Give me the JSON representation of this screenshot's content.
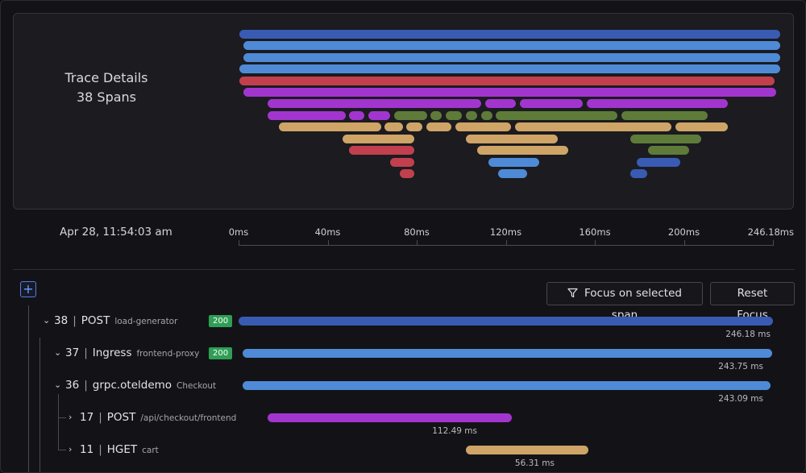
{
  "colors": {
    "dark_blue": "#3a5bb3",
    "light_blue": "#4f8ad6",
    "red": "#c2404e",
    "purple": "#a335cf",
    "olive": "#5e7b39",
    "tan": "#cfa467",
    "badge_green": "#2f9e55"
  },
  "minimap": {
    "title": "Trace Details",
    "subtitle": "38 Spans"
  },
  "timeline": {
    "date": "Apr 28, 11:54:03 am",
    "ticks": [
      "0ms",
      "40ms",
      "80ms",
      "120ms",
      "160ms",
      "200ms",
      "246.18ms"
    ],
    "total_ms": 246.18
  },
  "controls": {
    "expand_icon": "+",
    "focus_label": "Focus on selected span",
    "reset_label": "Reset Focus"
  },
  "rows": [
    {
      "id": "38",
      "name": "POST",
      "service": "load-generator",
      "status": "200",
      "duration": "246.18 ms",
      "expanded": true,
      "color": "#3a5bb3",
      "start_ms": 0,
      "duration_ms": 246.18
    },
    {
      "id": "37",
      "name": "Ingress",
      "service": "frontend-proxy",
      "status": "200",
      "duration": "243.75 ms",
      "expanded": true,
      "color": "#4f8ad6",
      "start_ms": 1.9,
      "duration_ms": 243.75
    },
    {
      "id": "36",
      "name": "grpc.oteldemo",
      "service": "Checkout",
      "status": "",
      "duration": "243.09 ms",
      "expanded": true,
      "color": "#4f8ad6",
      "start_ms": 1.9,
      "duration_ms": 243.09
    },
    {
      "id": "17",
      "name": "POST",
      "service": "/api/checkout/frontend",
      "status": "",
      "duration": "112.49 ms",
      "expanded": false,
      "color": "#a335cf",
      "start_ms": 13.4,
      "duration_ms": 112.49
    },
    {
      "id": "11",
      "name": "HGET",
      "service": "cart",
      "status": "",
      "duration": "56.31 ms",
      "expanded": false,
      "color": "#cfa467",
      "start_ms": 104.8,
      "duration_ms": 56.31
    }
  ]
}
